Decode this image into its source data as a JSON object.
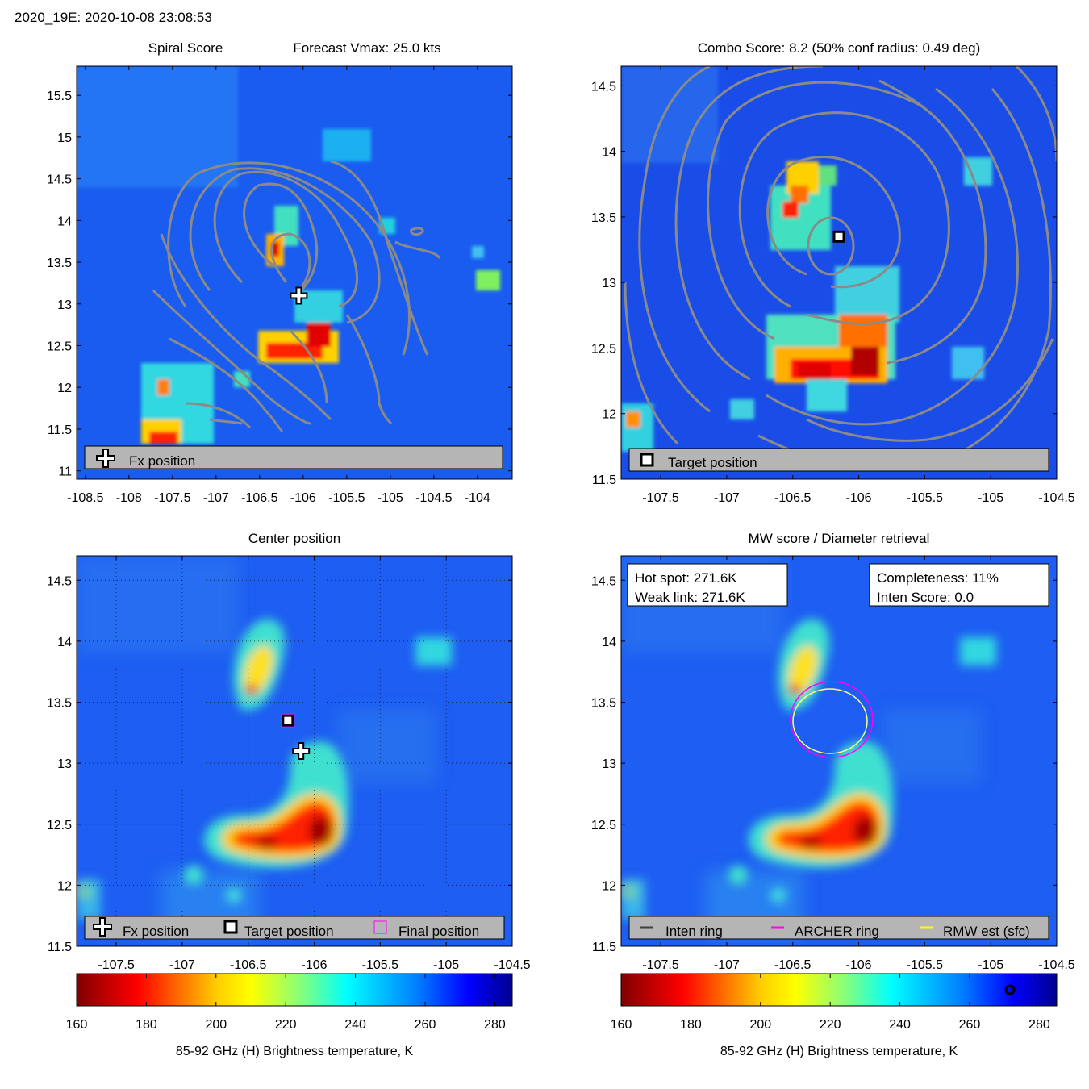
{
  "header": "2020_19E: 2020-10-08 23:08:53",
  "chart_data": [
    {
      "type": "heatmap",
      "panel": "spiral",
      "title_left": "Spiral Score",
      "title_right": "Forecast Vmax: 25.0 kts",
      "xlim": [
        -108.6,
        -103.6
      ],
      "ylim": [
        10.9,
        15.85
      ],
      "xticks": [
        "-108.5",
        "-108",
        "-107.5",
        "-107",
        "-106.5",
        "-106",
        "-105.5",
        "-105",
        "-104.5",
        "-104"
      ],
      "xtick_values": [
        -108.5,
        -108,
        -107.5,
        -107,
        -106.5,
        -106,
        -105.5,
        -105,
        -104.5,
        -104
      ],
      "yticks": [
        "11",
        "11.5",
        "12",
        "12.5",
        "13",
        "13.5",
        "14",
        "14.5",
        "15",
        "15.5"
      ],
      "ytick_values": [
        11,
        11.5,
        12,
        12.5,
        13,
        13.5,
        14,
        14.5,
        15,
        15.5
      ],
      "markers": [
        {
          "kind": "fx",
          "lon": -106.05,
          "lat": 13.1
        }
      ],
      "legend": [
        "Fx position"
      ]
    },
    {
      "type": "heatmap",
      "panel": "combo",
      "title": "Combo Score: 8.2  (50% conf radius: 0.49 deg)",
      "xlim": [
        -107.8,
        -104.5
      ],
      "ylim": [
        11.5,
        14.65
      ],
      "xticks": [
        "-107.5",
        "-107",
        "-106.5",
        "-106",
        "-105.5",
        "-105",
        "-104.5"
      ],
      "xtick_values": [
        -107.5,
        -107,
        -106.5,
        -106,
        -105.5,
        -105,
        -104.5
      ],
      "yticks": [
        "11.5",
        "12",
        "12.5",
        "13",
        "13.5",
        "14",
        "14.5"
      ],
      "ytick_values": [
        11.5,
        12,
        12.5,
        13,
        13.5,
        14,
        14.5
      ],
      "markers": [
        {
          "kind": "target",
          "lon": -106.15,
          "lat": 13.35
        }
      ],
      "legend": [
        "Target position"
      ]
    },
    {
      "type": "heatmap",
      "panel": "center",
      "title": "Center position",
      "xlim": [
        -107.8,
        -104.5
      ],
      "ylim": [
        11.5,
        14.7
      ],
      "xticks": [
        "-107.5",
        "-107",
        "-106.5",
        "-106",
        "-105.5",
        "-105",
        "-104.5"
      ],
      "xtick_values": [
        -107.5,
        -107,
        -106.5,
        -106,
        -105.5,
        -105,
        -104.5
      ],
      "yticks": [
        "11.5",
        "12",
        "12.5",
        "13",
        "13.5",
        "14",
        "14.5"
      ],
      "ytick_values": [
        11.5,
        12,
        12.5,
        13,
        13.5,
        14,
        14.5
      ],
      "markers": [
        {
          "kind": "fx",
          "lon": -106.1,
          "lat": 13.1
        },
        {
          "kind": "target",
          "lon": -106.2,
          "lat": 13.35
        },
        {
          "kind": "final",
          "lon": -106.2,
          "lat": 13.35
        }
      ],
      "legend": [
        "Fx position",
        "Target position",
        "Final position"
      ],
      "colorbar": {
        "label": "85-92 GHz (H) Brightness temperature, K",
        "range": [
          160,
          285
        ],
        "ticks": [
          "160",
          "180",
          "200",
          "220",
          "240",
          "260",
          "280"
        ],
        "tick_values": [
          160,
          180,
          200,
          220,
          240,
          260,
          280
        ]
      }
    },
    {
      "type": "heatmap",
      "panel": "mw",
      "title": "MW score / Diameter retrieval",
      "xlim": [
        -107.8,
        -104.5
      ],
      "ylim": [
        11.5,
        14.7
      ],
      "xticks": [
        "-107.5",
        "-107",
        "-106.5",
        "-106",
        "-105.5",
        "-105",
        "-104.5"
      ],
      "xtick_values": [
        -107.5,
        -107,
        -106.5,
        -106,
        -105.5,
        -105,
        -104.5
      ],
      "yticks": [
        "11.5",
        "12",
        "12.5",
        "13",
        "13.5",
        "14",
        "14.5"
      ],
      "ytick_values": [
        11.5,
        12,
        12.5,
        13,
        13.5,
        14,
        14.5
      ],
      "info_left": [
        "Hot spot: 271.6K",
        "Weak link: 271.6K"
      ],
      "info_right": [
        "Completeness: 11%",
        "Inten Score: 0.0"
      ],
      "legend": [
        "Inten ring",
        "ARCHER ring",
        "RMW est (sfc)"
      ],
      "legend_colors": [
        "#404040",
        "#ff00ff",
        "#ffff00"
      ],
      "colorbar": {
        "label": "85-92 GHz (H) Brightness temperature, K",
        "range": [
          160,
          285
        ],
        "ticks": [
          "160",
          "180",
          "200",
          "220",
          "240",
          "260",
          "280"
        ],
        "tick_values": [
          160,
          180,
          200,
          220,
          240,
          260,
          280
        ],
        "marker_value": 271.6
      }
    }
  ]
}
